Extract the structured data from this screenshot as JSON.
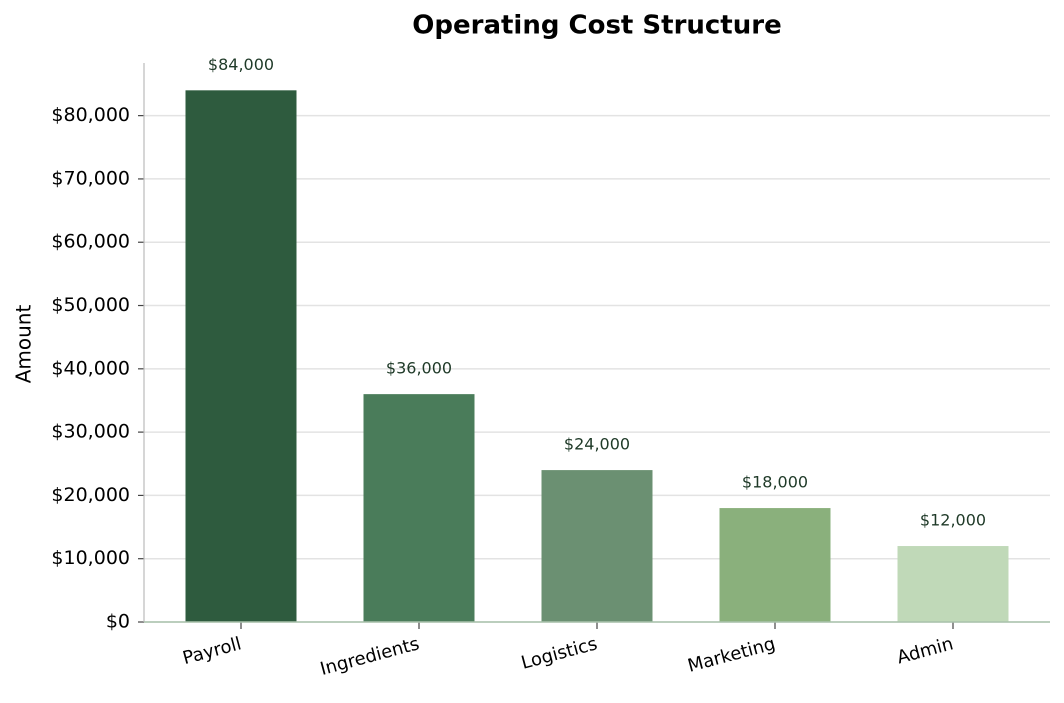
{
  "chart_data": {
    "type": "bar",
    "title": "Operating Cost Structure",
    "y_label": "Amount",
    "categories": [
      "Payroll",
      "Ingredients",
      "Logistics",
      "Marketing",
      "Admin"
    ],
    "values": [
      84000,
      36000,
      24000,
      18000,
      12000
    ],
    "value_labels": [
      "$84,000",
      "$36,000",
      "$24,000",
      "$18,000",
      "$12,000"
    ],
    "colors": [
      "#2e5b3e",
      "#4a7c5a",
      "#6b9072",
      "#8ab07c",
      "#c0d9b8"
    ],
    "ylim": [
      0,
      88000
    ],
    "yticks": [
      {
        "value": 0,
        "label": "$0"
      },
      {
        "value": 10000,
        "label": "$10,000"
      },
      {
        "value": 20000,
        "label": "$20,000"
      },
      {
        "value": 30000,
        "label": "$30,000"
      },
      {
        "value": 40000,
        "label": "$40,000"
      },
      {
        "value": 50000,
        "label": "$50,000"
      },
      {
        "value": 60000,
        "label": "$60,000"
      },
      {
        "value": 70000,
        "label": "$70,000"
      },
      {
        "value": 80000,
        "label": "$80,000"
      }
    ],
    "grid": true
  }
}
